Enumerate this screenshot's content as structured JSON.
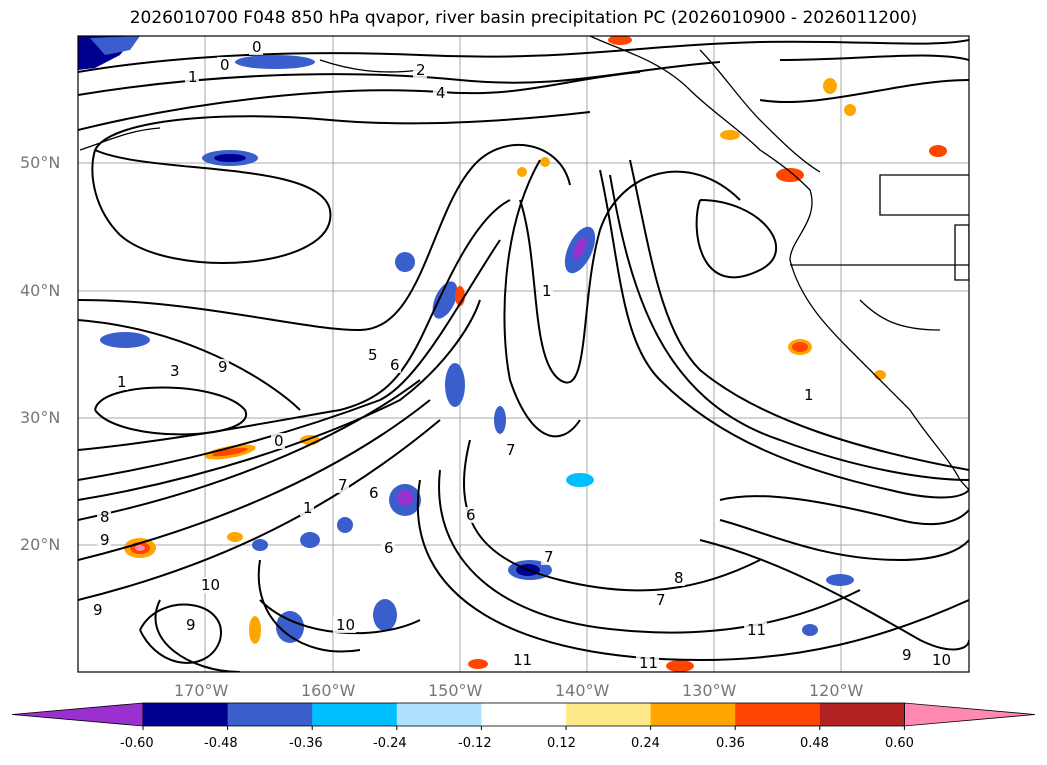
{
  "title": "2026010700 F048 850 hPa qvapor, river basin precipitation PC (2026010900 - 2026011200)",
  "map": {
    "lat_labels": [
      "50°N",
      "40°N",
      "30°N",
      "20°N"
    ],
    "lon_labels": [
      "170°W",
      "160°W",
      "150°W",
      "140°W",
      "130°W",
      "120°W"
    ],
    "contour_labels": [
      "0",
      "0",
      "1",
      "2",
      "4",
      "1",
      "9",
      "3",
      "1",
      "0",
      "5",
      "6",
      "7",
      "1",
      "8",
      "9",
      "10",
      "9",
      "9",
      "10",
      "6",
      "6",
      "7",
      "7",
      "8",
      "7",
      "11",
      "11",
      "11",
      "6",
      "1",
      "10",
      "9"
    ],
    "contour_color": "#000000",
    "land_outline_color": "#000000"
  },
  "colorbar": {
    "ticks": [
      "-0.60",
      "-0.48",
      "-0.36",
      "-0.24",
      "-0.12",
      "0.12",
      "0.24",
      "0.36",
      "0.48",
      "0.60"
    ],
    "colors": [
      "#9b30d0",
      "#000090",
      "#3a5fcd",
      "#00bfff",
      "#b0e2ff",
      "#ffffff",
      "#ffe88a",
      "#ffa500",
      "#ff4500",
      "#b22222",
      "#ff89b0"
    ]
  }
}
